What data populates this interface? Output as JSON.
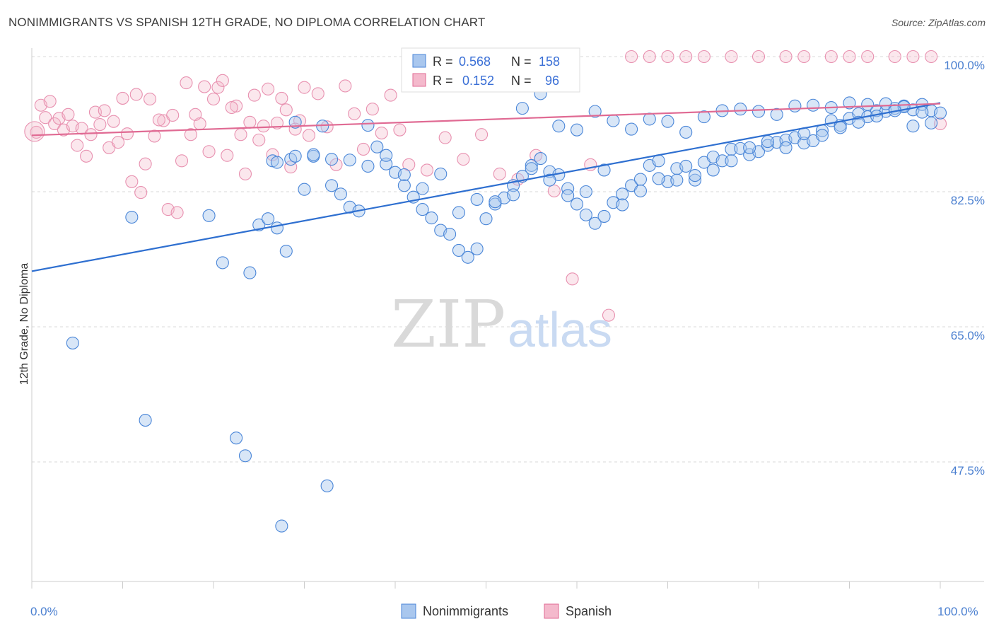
{
  "title": "NONIMMIGRANTS VS SPANISH 12TH GRADE, NO DIPLOMA CORRELATION CHART",
  "source": "Source: ZipAtlas.com",
  "watermark": {
    "zip": "ZIP",
    "atlas": "atlas"
  },
  "colors": {
    "blue": "#4a86d8",
    "blue_fill": "#a9c7ee",
    "pink": "#e06a93",
    "pink_fill": "#f4b9cc",
    "tick": "#4a7fd0"
  },
  "chart_data": {
    "type": "scatter",
    "title": "NONIMMIGRANTS VS SPANISH 12TH GRADE, NO DIPLOMA CORRELATION CHART",
    "xlabel": "",
    "ylabel": "12th Grade, No Diploma",
    "xlim": [
      0,
      100
    ],
    "ylim": [
      34,
      102.5
    ],
    "x_tick_labels": [
      "0.0%",
      "100.0%"
    ],
    "y_ticks": [
      100.0,
      82.5,
      65.0,
      47.5
    ],
    "y_tick_labels": [
      "100.0%",
      "82.5%",
      "65.0%",
      "47.5%"
    ],
    "grid": true,
    "legend_position": "bottom-center",
    "stats": [
      {
        "r_label": "R =",
        "r": "0.568",
        "n_label": "N =",
        "n": "158"
      },
      {
        "r_label": "R =",
        "r": "0.152",
        "n_label": "N =",
        "n": "96"
      }
    ],
    "series": [
      {
        "name": "Nonimmigrants",
        "color": "#4a86d8",
        "trend": [
          [
            0,
            72.2
          ],
          [
            100,
            94.0
          ]
        ],
        "points": [
          [
            4.5,
            62.9
          ],
          [
            12.5,
            52.9
          ],
          [
            22.5,
            50.6
          ],
          [
            23.5,
            48.3
          ],
          [
            27.5,
            39.2
          ],
          [
            32.5,
            44.4
          ],
          [
            11,
            79.2
          ],
          [
            19.5,
            79.4
          ],
          [
            21,
            73.3
          ],
          [
            24,
            72.0
          ],
          [
            27,
            77.8
          ],
          [
            28,
            74.8
          ],
          [
            25,
            78.2
          ],
          [
            26,
            79.0
          ],
          [
            26.5,
            86.5
          ],
          [
            28.5,
            86.7
          ],
          [
            29,
            91.5
          ],
          [
            30,
            82.8
          ],
          [
            31,
            87.1
          ],
          [
            32,
            91.0
          ],
          [
            33,
            83.3
          ],
          [
            34,
            82.2
          ],
          [
            35,
            80.5
          ],
          [
            36,
            80.0
          ],
          [
            37,
            91.1
          ],
          [
            38,
            88.3
          ],
          [
            39,
            86.1
          ],
          [
            40,
            85.0
          ],
          [
            41,
            83.3
          ],
          [
            42,
            81.8
          ],
          [
            43,
            80.2
          ],
          [
            44,
            79.1
          ],
          [
            45,
            77.5
          ],
          [
            46,
            77.0
          ],
          [
            47,
            74.9
          ],
          [
            48,
            74.0
          ],
          [
            49,
            75.1
          ],
          [
            50,
            79.0
          ],
          [
            51,
            80.9
          ],
          [
            52,
            81.7
          ],
          [
            53,
            83.3
          ],
          [
            54,
            84.5
          ],
          [
            55,
            85.9
          ],
          [
            56,
            86.8
          ],
          [
            57,
            85.1
          ],
          [
            58,
            84.7
          ],
          [
            59,
            82.9
          ],
          [
            60,
            80.9
          ],
          [
            61,
            79.5
          ],
          [
            62,
            78.4
          ],
          [
            63,
            79.3
          ],
          [
            64,
            81.1
          ],
          [
            65,
            82.2
          ],
          [
            66,
            83.3
          ],
          [
            67,
            84.1
          ],
          [
            68,
            85.9
          ],
          [
            69,
            86.5
          ],
          [
            70,
            83.8
          ],
          [
            71,
            85.5
          ],
          [
            72,
            85.8
          ],
          [
            73,
            84.0
          ],
          [
            74,
            86.3
          ],
          [
            75,
            87.0
          ],
          [
            76,
            86.5
          ],
          [
            77,
            88.0
          ],
          [
            78,
            88.1
          ],
          [
            79,
            87.3
          ],
          [
            80,
            87.7
          ],
          [
            81,
            88.5
          ],
          [
            82,
            88.9
          ],
          [
            83,
            89.2
          ],
          [
            84,
            89.5
          ],
          [
            85,
            88.8
          ],
          [
            86,
            89.1
          ],
          [
            87,
            90.4
          ],
          [
            88,
            91.7
          ],
          [
            89,
            91.1
          ],
          [
            90,
            92.0
          ],
          [
            91,
            92.6
          ],
          [
            92,
            92.2
          ],
          [
            93,
            93.0
          ],
          [
            94,
            92.9
          ],
          [
            95,
            93.3
          ],
          [
            96,
            93.6
          ],
          [
            97,
            93.1
          ],
          [
            98,
            93.8
          ],
          [
            99,
            93.0
          ],
          [
            100,
            92.7
          ],
          [
            54,
            93.3
          ],
          [
            56,
            95.2
          ],
          [
            58,
            91.0
          ],
          [
            60,
            90.5
          ],
          [
            62,
            92.9
          ],
          [
            64,
            91.7
          ],
          [
            66,
            90.6
          ],
          [
            68,
            91.9
          ],
          [
            70,
            91.6
          ],
          [
            72,
            90.2
          ],
          [
            74,
            92.2
          ],
          [
            76,
            93.0
          ],
          [
            78,
            93.2
          ],
          [
            80,
            92.9
          ],
          [
            82,
            92.5
          ],
          [
            84,
            93.6
          ],
          [
            86,
            93.7
          ],
          [
            88,
            93.4
          ],
          [
            90,
            94.0
          ],
          [
            92,
            93.8
          ],
          [
            94,
            93.9
          ],
          [
            96,
            93.5
          ],
          [
            98,
            92.8
          ],
          [
            99,
            91.4
          ],
          [
            97,
            91.0
          ],
          [
            95,
            93.0
          ],
          [
            93,
            92.3
          ],
          [
            91,
            91.5
          ],
          [
            89,
            90.8
          ],
          [
            87,
            89.8
          ],
          [
            85,
            90.0
          ],
          [
            83,
            88.2
          ],
          [
            81,
            89.0
          ],
          [
            79,
            88.2
          ],
          [
            77,
            86.5
          ],
          [
            75,
            85.3
          ],
          [
            73,
            84.6
          ],
          [
            71,
            84.0
          ],
          [
            69,
            84.2
          ],
          [
            67,
            82.6
          ],
          [
            65,
            80.8
          ],
          [
            63,
            85.3
          ],
          [
            61,
            82.5
          ],
          [
            59,
            82.0
          ],
          [
            57,
            84.0
          ],
          [
            55,
            85.5
          ],
          [
            53,
            82.1
          ],
          [
            51,
            81.2
          ],
          [
            49,
            81.5
          ],
          [
            47,
            79.8
          ],
          [
            45,
            84.8
          ],
          [
            43,
            82.9
          ],
          [
            41,
            84.7
          ],
          [
            39,
            87.2
          ],
          [
            37,
            85.8
          ],
          [
            35,
            86.6
          ],
          [
            33,
            86.7
          ],
          [
            31,
            87.3
          ],
          [
            29,
            87.1
          ],
          [
            27,
            86.3
          ],
          [
            46,
            100.0
          ],
          [
            49,
            99.1
          ]
        ]
      },
      {
        "name": "Spanish",
        "color": "#e06a93",
        "trend": [
          [
            0,
            89.8
          ],
          [
            100,
            93.9
          ]
        ],
        "points": [
          [
            0.5,
            90.2
          ],
          [
            1.5,
            92.1
          ],
          [
            2.5,
            91.3
          ],
          [
            3.5,
            90.5
          ],
          [
            4.5,
            91.0
          ],
          [
            5.5,
            90.7
          ],
          [
            6.5,
            89.9
          ],
          [
            7.5,
            91.2
          ],
          [
            8.5,
            88.2
          ],
          [
            9.5,
            88.9
          ],
          [
            10.5,
            90.0
          ],
          [
            11.5,
            95.1
          ],
          [
            12.5,
            86.1
          ],
          [
            13.5,
            89.7
          ],
          [
            14.5,
            91.7
          ],
          [
            15.5,
            92.4
          ],
          [
            16.5,
            86.5
          ],
          [
            17.5,
            89.9
          ],
          [
            18.5,
            91.3
          ],
          [
            19.5,
            87.7
          ],
          [
            20.5,
            96.0
          ],
          [
            21.5,
            87.2
          ],
          [
            22.5,
            93.6
          ],
          [
            23.5,
            84.8
          ],
          [
            24.5,
            95.0
          ],
          [
            25.5,
            91.0
          ],
          [
            26.5,
            87.3
          ],
          [
            27.5,
            94.6
          ],
          [
            28.5,
            85.7
          ],
          [
            29.5,
            91.7
          ],
          [
            30.5,
            89.8
          ],
          [
            31.5,
            95.2
          ],
          [
            32.5,
            90.9
          ],
          [
            33.5,
            86.0
          ],
          [
            34.5,
            96.2
          ],
          [
            35.5,
            92.6
          ],
          [
            36.5,
            88.0
          ],
          [
            37.5,
            93.2
          ],
          [
            38.5,
            90.1
          ],
          [
            39.5,
            95.0
          ],
          [
            40.5,
            90.5
          ],
          [
            41.5,
            86.0
          ],
          [
            43.5,
            85.3
          ],
          [
            45.5,
            89.5
          ],
          [
            47.5,
            86.7
          ],
          [
            49.5,
            89.9
          ],
          [
            51.5,
            84.8
          ],
          [
            53.5,
            84.1
          ],
          [
            55.5,
            87.2
          ],
          [
            57.5,
            82.6
          ],
          [
            59.5,
            71.2
          ],
          [
            61.5,
            86.0
          ],
          [
            63.5,
            66.5
          ],
          [
            66,
            100.0
          ],
          [
            68,
            100.0
          ],
          [
            70,
            100.0
          ],
          [
            72,
            100.0
          ],
          [
            74,
            100.0
          ],
          [
            77,
            100.0
          ],
          [
            80,
            100.0
          ],
          [
            83,
            100.0
          ],
          [
            85,
            100.0
          ],
          [
            88,
            100.0
          ],
          [
            90,
            100.0
          ],
          [
            92,
            100.0
          ],
          [
            95,
            100.0
          ],
          [
            97,
            100.0
          ],
          [
            99,
            100.0
          ],
          [
            100,
            91.3
          ],
          [
            1,
            93.7
          ],
          [
            2,
            94.2
          ],
          [
            3,
            92.0
          ],
          [
            4,
            92.5
          ],
          [
            5,
            88.5
          ],
          [
            6,
            87.1
          ],
          [
            7,
            92.8
          ],
          [
            8,
            93.0
          ],
          [
            9,
            91.6
          ],
          [
            10,
            94.6
          ],
          [
            11,
            83.8
          ],
          [
            12,
            82.4
          ],
          [
            13,
            94.5
          ],
          [
            14,
            91.8
          ],
          [
            15,
            80.2
          ],
          [
            16,
            79.8
          ],
          [
            17,
            96.6
          ],
          [
            18,
            92.5
          ],
          [
            19,
            96.1
          ],
          [
            20,
            94.5
          ],
          [
            21,
            96.9
          ],
          [
            22,
            93.4
          ],
          [
            23,
            89.9
          ],
          [
            24,
            91.5
          ],
          [
            25,
            89.2
          ],
          [
            26,
            95.8
          ],
          [
            27,
            91.4
          ],
          [
            28,
            93.1
          ],
          [
            29,
            90.6
          ],
          [
            30,
            96.0
          ]
        ]
      }
    ]
  },
  "legend": {
    "items": [
      "Nonimmigrants",
      "Spanish"
    ]
  }
}
